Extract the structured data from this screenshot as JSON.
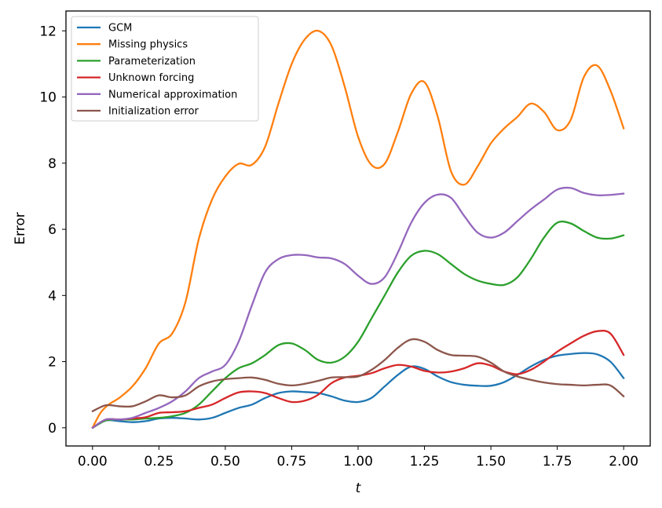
{
  "chart_data": {
    "type": "line",
    "title": "",
    "xlabel": "t",
    "ylabel": "Error",
    "xlim": [
      -0.1,
      2.1
    ],
    "ylim": [
      -0.55,
      12.6
    ],
    "xticks": [
      "0.00",
      "0.25",
      "0.50",
      "0.75",
      "1.00",
      "1.25",
      "1.50",
      "1.75",
      "2.00"
    ],
    "xtick_values": [
      0,
      0.25,
      0.5,
      0.75,
      1.0,
      1.25,
      1.5,
      1.75,
      2.0
    ],
    "yticks": [
      "0",
      "2",
      "4",
      "6",
      "8",
      "10",
      "12"
    ],
    "ytick_values": [
      0,
      2,
      4,
      6,
      8,
      10,
      12
    ],
    "grid": false,
    "legend_position": "top-left",
    "series": [
      {
        "name": "GCM",
        "color": "#1f77b4",
        "x": [
          0,
          0.05,
          0.1,
          0.15,
          0.2,
          0.25,
          0.3,
          0.35,
          0.4,
          0.45,
          0.5,
          0.55,
          0.6,
          0.65,
          0.7,
          0.75,
          0.8,
          0.85,
          0.9,
          0.95,
          1.0,
          1.05,
          1.1,
          1.15,
          1.2,
          1.25,
          1.3,
          1.35,
          1.4,
          1.45,
          1.5,
          1.55,
          1.6,
          1.65,
          1.7,
          1.75,
          1.8,
          1.85,
          1.9,
          1.95,
          2.0
        ],
        "y": [
          0.0,
          0.22,
          0.2,
          0.17,
          0.2,
          0.28,
          0.3,
          0.28,
          0.25,
          0.3,
          0.45,
          0.6,
          0.7,
          0.9,
          1.05,
          1.1,
          1.08,
          1.05,
          0.95,
          0.82,
          0.78,
          0.9,
          1.25,
          1.6,
          1.85,
          1.78,
          1.55,
          1.38,
          1.3,
          1.27,
          1.27,
          1.38,
          1.6,
          1.85,
          2.05,
          2.18,
          2.23,
          2.26,
          2.22,
          2.0,
          1.5
        ]
      },
      {
        "name": "Missing physics",
        "color": "#ff7f0e",
        "x": [
          0,
          0.03,
          0.06,
          0.1,
          0.15,
          0.2,
          0.25,
          0.3,
          0.35,
          0.4,
          0.45,
          0.5,
          0.55,
          0.6,
          0.65,
          0.7,
          0.75,
          0.8,
          0.85,
          0.9,
          0.95,
          1.0,
          1.05,
          1.1,
          1.15,
          1.2,
          1.25,
          1.3,
          1.35,
          1.4,
          1.45,
          1.5,
          1.55,
          1.6,
          1.65,
          1.7,
          1.75,
          1.8,
          1.85,
          1.9,
          1.95,
          2.0
        ],
        "y": [
          0.0,
          0.45,
          0.7,
          0.9,
          1.25,
          1.8,
          2.55,
          2.85,
          3.8,
          5.7,
          6.9,
          7.6,
          7.98,
          7.95,
          8.5,
          9.8,
          11.0,
          11.75,
          12.0,
          11.55,
          10.3,
          8.8,
          7.95,
          7.98,
          8.95,
          10.1,
          10.45,
          9.4,
          7.75,
          7.35,
          7.9,
          8.6,
          9.05,
          9.4,
          9.8,
          9.55,
          9.0,
          9.3,
          10.6,
          10.95,
          10.2,
          9.05
        ]
      },
      {
        "name": "Parameterization",
        "color": "#2ca02c",
        "x": [
          0,
          0.05,
          0.1,
          0.15,
          0.2,
          0.25,
          0.3,
          0.35,
          0.4,
          0.45,
          0.5,
          0.55,
          0.6,
          0.65,
          0.7,
          0.75,
          0.8,
          0.85,
          0.9,
          0.95,
          1.0,
          1.05,
          1.1,
          1.15,
          1.2,
          1.25,
          1.3,
          1.35,
          1.4,
          1.45,
          1.5,
          1.55,
          1.6,
          1.65,
          1.7,
          1.75,
          1.8,
          1.85,
          1.9,
          1.95,
          2.0
        ],
        "y": [
          0.0,
          0.22,
          0.25,
          0.25,
          0.28,
          0.3,
          0.35,
          0.45,
          0.7,
          1.1,
          1.5,
          1.8,
          1.95,
          2.2,
          2.5,
          2.55,
          2.35,
          2.05,
          1.97,
          2.15,
          2.6,
          3.3,
          4.0,
          4.7,
          5.2,
          5.35,
          5.25,
          4.95,
          4.65,
          4.45,
          4.35,
          4.32,
          4.55,
          5.1,
          5.75,
          6.2,
          6.18,
          5.95,
          5.75,
          5.72,
          5.82
        ]
      },
      {
        "name": "Unknown forcing",
        "color": "#d62728",
        "x": [
          0,
          0.05,
          0.1,
          0.15,
          0.2,
          0.25,
          0.3,
          0.35,
          0.4,
          0.45,
          0.5,
          0.55,
          0.6,
          0.65,
          0.7,
          0.75,
          0.8,
          0.85,
          0.9,
          0.95,
          1.0,
          1.05,
          1.1,
          1.15,
          1.2,
          1.25,
          1.3,
          1.35,
          1.4,
          1.45,
          1.5,
          1.55,
          1.6,
          1.65,
          1.7,
          1.75,
          1.8,
          1.85,
          1.9,
          1.95,
          2.0
        ],
        "y": [
          0.0,
          0.25,
          0.25,
          0.28,
          0.32,
          0.45,
          0.47,
          0.5,
          0.6,
          0.7,
          0.9,
          1.07,
          1.1,
          1.05,
          0.9,
          0.78,
          0.82,
          1.0,
          1.35,
          1.52,
          1.57,
          1.65,
          1.8,
          1.9,
          1.85,
          1.72,
          1.67,
          1.7,
          1.8,
          1.95,
          1.88,
          1.7,
          1.62,
          1.75,
          2.0,
          2.3,
          2.55,
          2.78,
          2.92,
          2.85,
          2.2
        ]
      },
      {
        "name": "Numerical approximation",
        "color": "#9467bd",
        "x": [
          0,
          0.05,
          0.1,
          0.15,
          0.2,
          0.25,
          0.3,
          0.35,
          0.4,
          0.45,
          0.5,
          0.55,
          0.6,
          0.65,
          0.7,
          0.75,
          0.8,
          0.85,
          0.9,
          0.95,
          1.0,
          1.05,
          1.1,
          1.15,
          1.2,
          1.25,
          1.3,
          1.35,
          1.4,
          1.45,
          1.5,
          1.55,
          1.6,
          1.65,
          1.7,
          1.75,
          1.8,
          1.85,
          1.9,
          1.95,
          2.0
        ],
        "y": [
          0.0,
          0.25,
          0.25,
          0.3,
          0.45,
          0.6,
          0.8,
          1.1,
          1.5,
          1.7,
          1.9,
          2.6,
          3.7,
          4.7,
          5.1,
          5.22,
          5.22,
          5.15,
          5.12,
          4.95,
          4.6,
          4.35,
          4.55,
          5.3,
          6.2,
          6.8,
          7.05,
          6.95,
          6.4,
          5.9,
          5.75,
          5.9,
          6.25,
          6.6,
          6.9,
          7.2,
          7.25,
          7.1,
          7.03,
          7.04,
          7.08
        ]
      },
      {
        "name": "Initialization error",
        "color": "#8c564b",
        "x": [
          0,
          0.05,
          0.1,
          0.15,
          0.2,
          0.25,
          0.3,
          0.35,
          0.4,
          0.45,
          0.5,
          0.55,
          0.6,
          0.65,
          0.7,
          0.75,
          0.8,
          0.85,
          0.9,
          0.95,
          1.0,
          1.05,
          1.1,
          1.15,
          1.2,
          1.25,
          1.3,
          1.35,
          1.4,
          1.45,
          1.5,
          1.55,
          1.6,
          1.65,
          1.7,
          1.75,
          1.8,
          1.85,
          1.9,
          1.95,
          2.0
        ],
        "y": [
          0.5,
          0.68,
          0.65,
          0.65,
          0.8,
          0.98,
          0.92,
          0.98,
          1.25,
          1.4,
          1.47,
          1.5,
          1.52,
          1.45,
          1.33,
          1.28,
          1.33,
          1.42,
          1.52,
          1.53,
          1.55,
          1.75,
          2.05,
          2.42,
          2.67,
          2.6,
          2.35,
          2.2,
          2.18,
          2.15,
          1.97,
          1.7,
          1.55,
          1.45,
          1.37,
          1.32,
          1.3,
          1.28,
          1.3,
          1.28,
          0.95
        ]
      }
    ]
  }
}
